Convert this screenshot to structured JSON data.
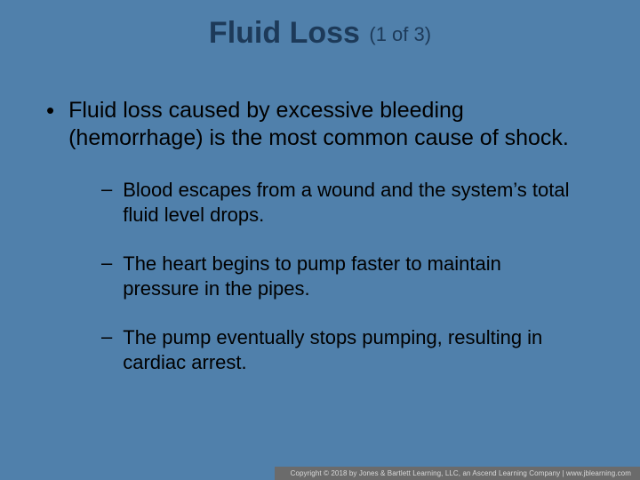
{
  "colors": {
    "background": "#5080ab",
    "title_text": "#1d3a59",
    "body_text": "#000000",
    "footer_bg": "#6b6b6b",
    "footer_text": "#d9d9d9"
  },
  "typography": {
    "title_main_size": 34,
    "title_suffix_size": 22,
    "bullet_size": 25,
    "sub_bullet_size": 22,
    "footer_size": 8,
    "font_family": "Arial"
  },
  "title": {
    "main": "Fluid Loss",
    "suffix": "(1 of 3)"
  },
  "bullets": [
    {
      "text": "Fluid loss caused by excessive bleeding (hemorrhage) is the most common cause of shock.",
      "sub": [
        "Blood escapes from a wound and the system’s total fluid level drops.",
        "The heart begins to pump faster to maintain pressure in the pipes.",
        "The pump eventually stops pumping, resulting in cardiac arrest."
      ]
    }
  ],
  "footer": "Copyright © 2018 by Jones & Bartlett Learning, LLC, an Ascend Learning Company | www.jblearning.com"
}
